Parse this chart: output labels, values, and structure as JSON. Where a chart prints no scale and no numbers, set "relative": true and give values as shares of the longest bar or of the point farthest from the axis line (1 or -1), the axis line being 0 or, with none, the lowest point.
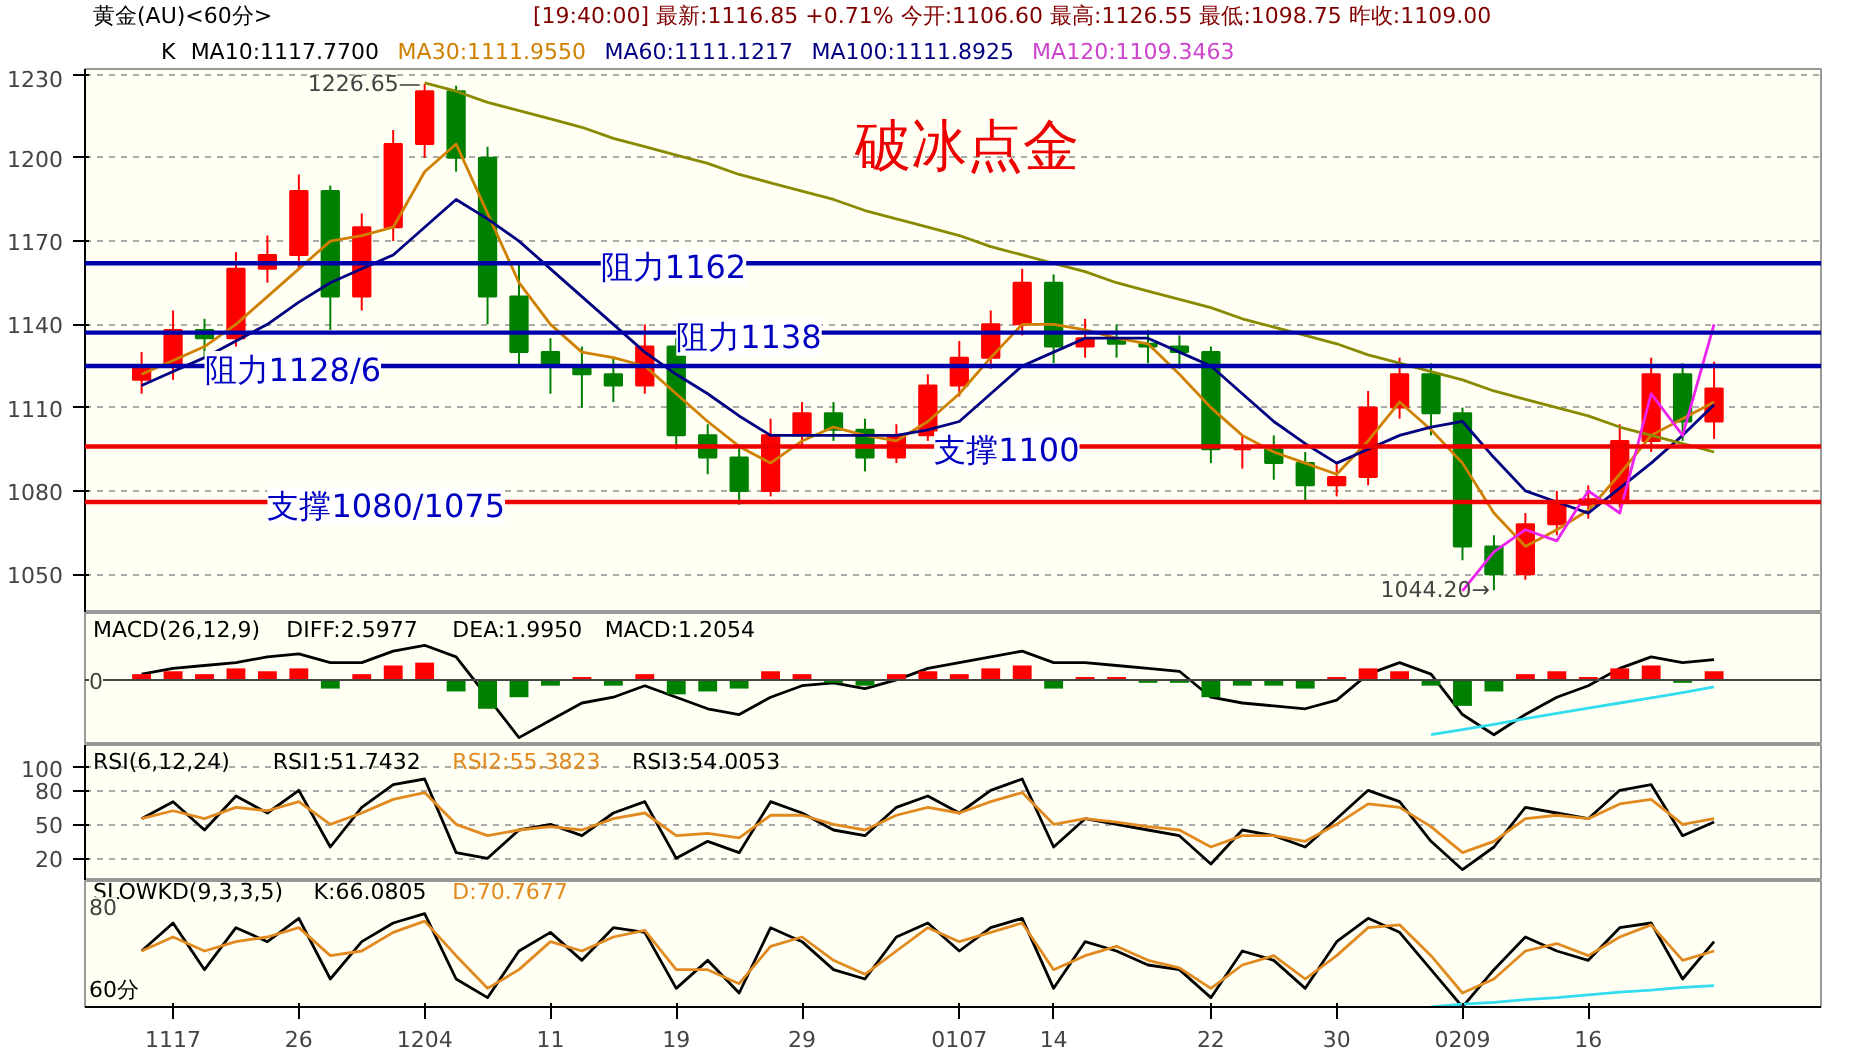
{
  "chart_data": [
    {
      "type": "candlestick",
      "title": "黄金(AU)<60分>",
      "subtitle": "[19:40:00] 最新:1116.85 +0.71% 今开:1106.60 最高:1126.55 最低:1098.75 昨收:1109.00",
      "categories": [
        null,
        "1117",
        null,
        null,
        null,
        "26",
        null,
        null,
        null,
        "1204",
        null,
        null,
        null,
        "11",
        null,
        null,
        null,
        "19",
        null,
        null,
        null,
        "29",
        null,
        null,
        null,
        null,
        "0107",
        null,
        null,
        "14",
        null,
        null,
        null,
        null,
        "22",
        null,
        null,
        null,
        "30",
        null,
        null,
        null,
        "0209",
        null,
        null,
        null,
        "16",
        null,
        null,
        null,
        null
      ],
      "ohlc": [
        [
          1120,
          1130,
          1115,
          1125
        ],
        [
          1125,
          1145,
          1120,
          1138
        ],
        [
          1138,
          1142,
          1128,
          1135
        ],
        [
          1135,
          1166,
          1132,
          1160
        ],
        [
          1160,
          1172,
          1155,
          1165
        ],
        [
          1165,
          1194,
          1160,
          1188
        ],
        [
          1188,
          1190,
          1138,
          1150
        ],
        [
          1150,
          1180,
          1145,
          1175
        ],
        [
          1175,
          1210,
          1170,
          1205
        ],
        [
          1205,
          1226.65,
          1200,
          1224
        ],
        [
          1224,
          1226,
          1195,
          1200
        ],
        [
          1200,
          1204,
          1140,
          1150
        ],
        [
          1150,
          1162,
          1125,
          1130
        ],
        [
          1130,
          1135,
          1115,
          1125
        ],
        [
          1125,
          1132,
          1110,
          1122
        ],
        [
          1122,
          1128,
          1112,
          1118
        ],
        [
          1118,
          1140,
          1115,
          1132
        ],
        [
          1132,
          1135,
          1095,
          1100
        ],
        [
          1100,
          1104,
          1086,
          1092
        ],
        [
          1092,
          1096,
          1075,
          1080
        ],
        [
          1080,
          1106,
          1078,
          1100
        ],
        [
          1100,
          1112,
          1096,
          1108
        ],
        [
          1108,
          1112,
          1098,
          1102
        ],
        [
          1102,
          1106,
          1087,
          1092
        ],
        [
          1092,
          1104,
          1090,
          1100
        ],
        [
          1100,
          1122,
          1098,
          1118
        ],
        [
          1118,
          1134,
          1114,
          1128
        ],
        [
          1128,
          1145,
          1124,
          1140
        ],
        [
          1140,
          1160,
          1136,
          1155
        ],
        [
          1155,
          1158,
          1126,
          1132
        ],
        [
          1132,
          1142,
          1128,
          1135
        ],
        [
          1135,
          1140,
          1128,
          1133
        ],
        [
          1133,
          1138,
          1126,
          1132
        ],
        [
          1132,
          1136,
          1124,
          1130
        ],
        [
          1130,
          1132,
          1090,
          1095
        ],
        [
          1095,
          1100,
          1088,
          1095
        ],
        [
          1095,
          1100,
          1084,
          1090
        ],
        [
          1090,
          1094,
          1076,
          1082
        ],
        [
          1082,
          1090,
          1078,
          1085
        ],
        [
          1085,
          1116,
          1082,
          1110
        ],
        [
          1110,
          1128,
          1106,
          1122
        ],
        [
          1122,
          1126,
          1100,
          1108
        ],
        [
          1108,
          1110,
          1055,
          1060
        ],
        [
          1060,
          1064,
          1044.2,
          1050
        ],
        [
          1050,
          1072,
          1048,
          1068
        ],
        [
          1068,
          1080,
          1064,
          1075
        ],
        [
          1075,
          1082,
          1070,
          1077
        ],
        [
          1077,
          1104,
          1074,
          1098
        ],
        [
          1098,
          1128,
          1094,
          1122
        ],
        [
          1122,
          1126,
          1098,
          1105
        ],
        [
          1105,
          1126.55,
          1098.75,
          1116.85
        ]
      ],
      "series": [
        {
          "type": "line",
          "name": "MA30:1111.9550",
          "color": "#d08000",
          "values": [
            1122,
            1127,
            1132,
            1140,
            1150,
            1160,
            1170,
            1172,
            1175,
            1195,
            1205,
            1180,
            1155,
            1140,
            1130,
            1128,
            1125,
            1115,
            1105,
            1096,
            1090,
            1098,
            1103,
            1100,
            1098,
            1105,
            1115,
            1128,
            1140,
            1140,
            1138,
            1135,
            1133,
            1122,
            1110,
            1100,
            1094,
            1090,
            1086,
            1098,
            1112,
            1102,
            1090,
            1072,
            1060,
            1066,
            1073,
            1086,
            1100,
            1106,
            1112
          ]
        },
        {
          "type": "line",
          "name": "MA60:1111.1217",
          "color": "#000080",
          "values": [
            1118,
            1123,
            1128,
            1134,
            1140,
            1148,
            1155,
            1160,
            1165,
            1175,
            1185,
            1178,
            1170,
            1160,
            1150,
            1140,
            1130,
            1122,
            1115,
            1107,
            1100,
            1100,
            1100,
            1100,
            1100,
            1102,
            1105,
            1115,
            1125,
            1130,
            1135,
            1135,
            1135,
            1130,
            1125,
            1115,
            1105,
            1097,
            1090,
            1095,
            1100,
            1103,
            1105,
            1092,
            1080,
            1076,
            1072,
            1081,
            1090,
            1100,
            1111
          ]
        },
        {
          "type": "line",
          "color": "#8a8a00",
          "values": [
            null,
            null,
            null,
            null,
            null,
            null,
            null,
            null,
            null,
            1227,
            1224,
            1220,
            1217,
            1214,
            1211,
            1207,
            1204,
            1201,
            1198,
            1194,
            1191,
            1188,
            1185,
            1181,
            1178,
            1175,
            1172,
            1168,
            1165,
            1162,
            1159,
            1155,
            1152,
            1149,
            1146,
            1142,
            1139,
            1136,
            1133,
            1129,
            1126,
            1123,
            1120,
            1116,
            1113,
            1110,
            1107,
            1103,
            1100,
            1097,
            1094
          ]
        },
        {
          "type": "line",
          "color": "#ee22ee",
          "values": [
            null,
            null,
            null,
            null,
            null,
            null,
            null,
            null,
            null,
            null,
            null,
            null,
            null,
            null,
            null,
            null,
            null,
            null,
            null,
            null,
            null,
            null,
            null,
            null,
            null,
            null,
            null,
            null,
            null,
            null,
            null,
            null,
            null,
            null,
            null,
            null,
            null,
            null,
            null,
            null,
            null,
            null,
            1044,
            1058,
            1066,
            1062,
            1080,
            1072,
            1115,
            1100,
            1140
          ]
        }
      ],
      "ylim": [
        1036,
        1232
      ],
      "yticks": [
        1050,
        1080,
        1110,
        1140,
        1170,
        1200,
        1230
      ],
      "grid": "y",
      "tick_labels": "y",
      "ref_lines": [
        {
          "axis": "y",
          "value": 1162,
          "label": "阻力1162",
          "color": "#0000aa"
        },
        {
          "axis": "y",
          "value": 1137,
          "label": "阻力1138",
          "color": "#0000aa"
        },
        {
          "axis": "y",
          "value": 1125,
          "label": "阻力1128/6",
          "color": "#0000aa"
        },
        {
          "axis": "y",
          "value": 1096,
          "label": "支撑1100",
          "color": "#ee0000"
        },
        {
          "axis": "y",
          "value": 1076,
          "label": "支撑1080/1075",
          "color": "#ee0000"
        }
      ],
      "annotations": [
        "破冰点金",
        "K",
        "MA10:1117.7700",
        "MA100:1111.8925",
        "MA120:1109.3463",
        "1226.65—",
        "1044.20→"
      ]
    },
    {
      "type": "bar",
      "title": "MACD(26,12,9)",
      "relative": true,
      "tick_labels": false,
      "categories": [
        null,
        "1117",
        null,
        null,
        null,
        "26",
        null,
        null,
        null,
        "1204",
        null,
        null,
        null,
        "11",
        null,
        null,
        null,
        "19",
        null,
        null,
        null,
        "29",
        null,
        null,
        null,
        null,
        "0107",
        null,
        null,
        "14",
        null,
        null,
        null,
        null,
        "22",
        null,
        null,
        null,
        "30",
        null,
        null,
        null,
        "0209",
        null,
        null,
        null,
        "16",
        null,
        null,
        null,
        null
      ],
      "series": [
        {
          "color": "#ff0000",
          "values": [
            0.1,
            0.15,
            0.1,
            0.2,
            0.15,
            0.2,
            null,
            0.1,
            0.25,
            0.3,
            null,
            null,
            null,
            null,
            0.05,
            null,
            0.1,
            null,
            null,
            null,
            0.15,
            0.1,
            null,
            null,
            0.1,
            0.15,
            0.1,
            0.2,
            0.25,
            null,
            0.05,
            0.05,
            null,
            null,
            null,
            null,
            null,
            null,
            0.05,
            0.2,
            0.15,
            null,
            null,
            null,
            0.1,
            0.15,
            0.05,
            0.2,
            0.25,
            null,
            0.15
          ]
        },
        {
          "color": "#008000",
          "values": [
            null,
            null,
            null,
            null,
            null,
            null,
            -0.15,
            null,
            null,
            null,
            -0.2,
            -0.5,
            -0.3,
            -0.1,
            null,
            -0.1,
            null,
            -0.25,
            -0.2,
            -0.15,
            null,
            null,
            -0.05,
            -0.1,
            null,
            null,
            null,
            null,
            null,
            -0.15,
            null,
            null,
            -0.05,
            -0.05,
            -0.3,
            -0.1,
            -0.1,
            -0.15,
            null,
            null,
            null,
            -0.1,
            -0.45,
            -0.2,
            null,
            null,
            null,
            null,
            null,
            -0.05,
            null
          ]
        },
        {
          "type": "line",
          "name": "DIFF:2.5977",
          "color": "#000000",
          "values": [
            0.1,
            0.2,
            0.25,
            0.3,
            0.4,
            0.45,
            0.3,
            0.3,
            0.5,
            0.6,
            0.4,
            -0.3,
            -1.0,
            -0.7,
            -0.4,
            -0.3,
            -0.1,
            -0.3,
            -0.5,
            -0.6,
            -0.3,
            -0.1,
            -0.05,
            -0.15,
            0,
            0.2,
            0.3,
            0.4,
            0.5,
            0.3,
            0.3,
            0.25,
            0.2,
            0.15,
            -0.3,
            -0.4,
            -0.45,
            -0.5,
            -0.35,
            0.1,
            0.3,
            0.1,
            -0.6,
            -0.95,
            -0.6,
            -0.3,
            -0.1,
            0.2,
            0.4,
            0.3,
            0.35
          ]
        },
        {
          "type": "line",
          "color": "#33ddee",
          "values": [
            null,
            null,
            null,
            null,
            null,
            null,
            null,
            null,
            null,
            null,
            null,
            null,
            null,
            null,
            null,
            null,
            null,
            null,
            null,
            null,
            null,
            null,
            null,
            null,
            null,
            null,
            null,
            null,
            null,
            null,
            null,
            null,
            null,
            null,
            null,
            null,
            null,
            null,
            null,
            null,
            null,
            -0.95,
            -0.86,
            -0.77,
            -0.67,
            -0.58,
            -0.49,
            -0.4,
            -0.31,
            -0.22,
            -0.12
          ]
        }
      ],
      "annotations": [
        "DEA:1.9950",
        "MACD:1.2054",
        "0"
      ]
    },
    {
      "type": "line",
      "title": "RSI(6,12,24)",
      "ylim": [
        0,
        120
      ],
      "yticks": [
        20,
        50,
        80,
        100
      ],
      "grid": "y",
      "tick_labels": "y",
      "categories": [
        null,
        "1117",
        null,
        null,
        null,
        "26",
        null,
        null,
        null,
        "1204",
        null,
        null,
        null,
        "11",
        null,
        null,
        null,
        "19",
        null,
        null,
        null,
        "29",
        null,
        null,
        null,
        null,
        "0107",
        null,
        null,
        "14",
        null,
        null,
        null,
        null,
        "22",
        null,
        null,
        null,
        "30",
        null,
        null,
        null,
        "0209",
        null,
        null,
        null,
        "16",
        null,
        null,
        null,
        null
      ],
      "series": [
        {
          "name": "RSI1:51.7432",
          "color": "#000000",
          "values": [
            55,
            70,
            45,
            75,
            60,
            80,
            30,
            65,
            85,
            90,
            25,
            20,
            45,
            50,
            40,
            60,
            70,
            20,
            35,
            25,
            70,
            60,
            45,
            40,
            65,
            75,
            60,
            80,
            90,
            30,
            55,
            50,
            45,
            40,
            15,
            45,
            40,
            30,
            55,
            80,
            70,
            35,
            10,
            30,
            65,
            60,
            55,
            80,
            85,
            40,
            52
          ]
        },
        {
          "name": "RSI2:55.3823",
          "color": "#e08a20",
          "values": [
            55,
            62,
            55,
            65,
            62,
            70,
            50,
            60,
            72,
            78,
            50,
            40,
            45,
            48,
            45,
            55,
            60,
            40,
            42,
            38,
            58,
            58,
            50,
            45,
            58,
            65,
            60,
            70,
            78,
            50,
            55,
            52,
            48,
            45,
            30,
            40,
            40,
            35,
            50,
            68,
            65,
            48,
            25,
            35,
            55,
            58,
            55,
            68,
            72,
            50,
            55
          ]
        }
      ],
      "annotations": [
        "RSI3:54.0053"
      ]
    },
    {
      "type": "line",
      "title": "SLOWKD(9,3,3,5)",
      "relative": true,
      "xlabel": "60分",
      "categories": [
        null,
        "1117",
        null,
        null,
        null,
        "26",
        null,
        null,
        null,
        "1204",
        null,
        null,
        null,
        "11",
        null,
        null,
        null,
        "19",
        null,
        null,
        null,
        "29",
        null,
        null,
        null,
        null,
        "0107",
        null,
        null,
        "14",
        null,
        null,
        null,
        null,
        "22",
        null,
        null,
        null,
        "30",
        null,
        null,
        null,
        "0209",
        null,
        null,
        null,
        "16",
        null,
        null,
        null,
        null
      ],
      "series": [
        {
          "name": "K:66.0805",
          "color": "#000000",
          "values": [
            0.6,
            0.9,
            0.4,
            0.85,
            0.7,
            0.95,
            0.3,
            0.7,
            0.9,
            1.0,
            0.3,
            0.1,
            0.6,
            0.8,
            0.5,
            0.85,
            0.8,
            0.2,
            0.5,
            0.15,
            0.85,
            0.7,
            0.4,
            0.3,
            0.75,
            0.9,
            0.6,
            0.85,
            0.95,
            0.2,
            0.7,
            0.6,
            0.45,
            0.4,
            0.1,
            0.6,
            0.5,
            0.2,
            0.7,
            0.95,
            0.8,
            0.4,
            0.0,
            0.4,
            0.75,
            0.6,
            0.5,
            0.85,
            0.9,
            0.3,
            0.7
          ]
        },
        {
          "name": "D:70.7677",
          "color": "#e08a20",
          "values": [
            0.6,
            0.75,
            0.6,
            0.7,
            0.75,
            0.85,
            0.55,
            0.6,
            0.8,
            0.92,
            0.55,
            0.2,
            0.4,
            0.7,
            0.6,
            0.75,
            0.82,
            0.4,
            0.4,
            0.25,
            0.65,
            0.75,
            0.5,
            0.35,
            0.6,
            0.85,
            0.7,
            0.8,
            0.9,
            0.4,
            0.55,
            0.65,
            0.5,
            0.42,
            0.2,
            0.45,
            0.55,
            0.3,
            0.55,
            0.85,
            0.88,
            0.55,
            0.15,
            0.3,
            0.6,
            0.68,
            0.55,
            0.75,
            0.88,
            0.5,
            0.6
          ]
        },
        {
          "type": "line",
          "color": "#33ddee",
          "values": [
            null,
            null,
            null,
            null,
            null,
            null,
            null,
            null,
            null,
            null,
            null,
            null,
            null,
            null,
            null,
            null,
            null,
            null,
            null,
            null,
            null,
            null,
            null,
            null,
            null,
            null,
            null,
            null,
            null,
            null,
            null,
            null,
            null,
            null,
            null,
            null,
            null,
            null,
            null,
            null,
            null,
            0,
            0.03,
            0.05,
            0.08,
            0.1,
            0.13,
            0.16,
            0.18,
            0.21,
            0.23
          ]
        }
      ],
      "annotations": [
        "80"
      ]
    }
  ]
}
